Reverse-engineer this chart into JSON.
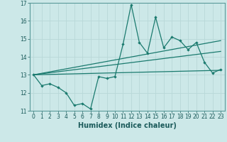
{
  "title": "",
  "xlabel": "Humidex (Indice chaleur)",
  "bg_color": "#cce8e8",
  "line_color": "#1a7a6e",
  "grid_color": "#b8d8d8",
  "x_data": [
    0,
    1,
    2,
    3,
    4,
    5,
    6,
    7,
    8,
    9,
    10,
    11,
    12,
    13,
    14,
    15,
    16,
    17,
    18,
    19,
    20,
    21,
    22,
    23
  ],
  "y_main": [
    13.0,
    12.4,
    12.5,
    12.3,
    12.0,
    11.3,
    11.4,
    11.1,
    12.9,
    12.8,
    12.9,
    14.7,
    16.9,
    14.8,
    14.2,
    16.2,
    14.5,
    15.1,
    14.9,
    14.4,
    14.8,
    13.7,
    13.1,
    13.3
  ],
  "trend_lines": [
    {
      "x": [
        0,
        23
      ],
      "y": [
        13.0,
        13.25
      ]
    },
    {
      "x": [
        0,
        23
      ],
      "y": [
        13.0,
        14.3
      ]
    },
    {
      "x": [
        0,
        23
      ],
      "y": [
        13.0,
        14.9
      ]
    }
  ],
  "xlim": [
    -0.5,
    23.5
  ],
  "ylim": [
    11,
    17
  ],
  "xticks": [
    0,
    1,
    2,
    3,
    4,
    5,
    6,
    7,
    8,
    9,
    10,
    11,
    12,
    13,
    14,
    15,
    16,
    17,
    18,
    19,
    20,
    21,
    22,
    23
  ],
  "yticks": [
    11,
    12,
    13,
    14,
    15,
    16,
    17
  ],
  "tick_fontsize": 5.5,
  "label_fontsize": 7.0
}
